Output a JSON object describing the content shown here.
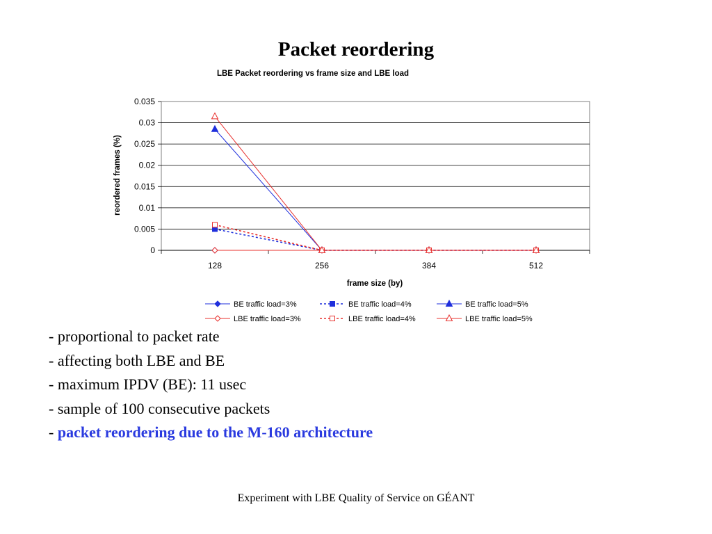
{
  "slide": {
    "title": "Packet reordering",
    "footer": "Experiment with LBE Quality of Service on GÉANT"
  },
  "bullets": [
    {
      "prefix": "- ",
      "text": "proportional to packet rate",
      "highlight": false
    },
    {
      "prefix": "- ",
      "text": "affecting both LBE and BE",
      "highlight": false
    },
    {
      "prefix": "- ",
      "text": "maximum IPDV (BE): 11 usec",
      "highlight": false
    },
    {
      "prefix": "- ",
      "text": "sample of 100 consecutive packets",
      "highlight": false
    },
    {
      "prefix": "- ",
      "text": "packet reordering due to the M-160 architecture",
      "highlight": true
    }
  ],
  "colors": {
    "highlight": "#2a3adf",
    "be_series": "#1f2fdc",
    "lbe_series": "#e8312e",
    "plot_border": "#7f7f7f",
    "gridline": "#000000"
  },
  "chart_data": {
    "type": "line",
    "title": "LBE Packet reordering vs frame size and LBE load",
    "xlabel": "frame size (by)",
    "ylabel": "reordered frames (%)",
    "categories": [
      "128",
      "256",
      "384",
      "512"
    ],
    "ylim": [
      0,
      0.035
    ],
    "yticks": [
      "0",
      "0.005",
      "0.01",
      "0.015",
      "0.02",
      "0.025",
      "0.03",
      "0.035"
    ],
    "grid": true,
    "legend_position": "bottom",
    "series": [
      {
        "name": "BE traffic load=3%",
        "values": [
          0,
          0,
          0,
          0
        ],
        "color": "#1f2fdc",
        "dash": "solid",
        "marker": "diamond"
      },
      {
        "name": "BE traffic load=4%",
        "values": [
          0.005,
          0,
          0,
          0
        ],
        "color": "#1f2fdc",
        "dash": "dashed",
        "marker": "square"
      },
      {
        "name": "BE traffic load=5%",
        "values": [
          0.0285,
          0,
          0,
          0
        ],
        "color": "#1f2fdc",
        "dash": "solid",
        "marker": "triangle"
      },
      {
        "name": "LBE traffic load=3%",
        "values": [
          0,
          0,
          0,
          0
        ],
        "color": "#e8312e",
        "dash": "solid",
        "marker": "diamond-open"
      },
      {
        "name": "LBE traffic load=4%",
        "values": [
          0.006,
          0,
          0,
          0
        ],
        "color": "#e8312e",
        "dash": "dashed",
        "marker": "square-open"
      },
      {
        "name": "LBE traffic load=5%",
        "values": [
          0.0315,
          0,
          0,
          0
        ],
        "color": "#e8312e",
        "dash": "solid",
        "marker": "triangle-open"
      }
    ]
  }
}
